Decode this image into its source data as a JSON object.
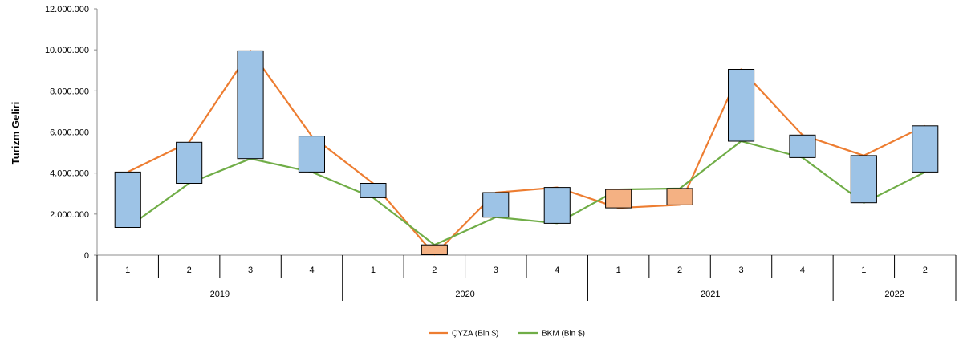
{
  "chart_data": {
    "type": "line",
    "ylabel": "Turizm Geliri",
    "ylim": [
      0,
      12000000
    ],
    "y_ticks": [
      "0",
      "2.000.000",
      "4.000.000",
      "6.000.000",
      "8.000.000",
      "10.000.000",
      "12.000.000"
    ],
    "quarters": [
      "1",
      "2",
      "3",
      "4",
      "1",
      "2",
      "3",
      "4",
      "1",
      "2",
      "3",
      "4",
      "1",
      "2"
    ],
    "years": [
      {
        "label": "2019",
        "span": 4
      },
      {
        "label": "2020",
        "span": 4
      },
      {
        "label": "2021",
        "span": 4
      },
      {
        "label": "2022",
        "span": 2
      }
    ],
    "series": [
      {
        "name": "ÇYZA (Bin $)",
        "color": "#ED7D31",
        "values": [
          4050000,
          5500000,
          9950000,
          5800000,
          3500000,
          20000,
          3050000,
          3300000,
          2300000,
          2450000,
          9050000,
          5850000,
          4850000,
          6300000
        ]
      },
      {
        "name": "BKM (Bin $)",
        "color": "#70AD47",
        "values": [
          1350000,
          3500000,
          4700000,
          4050000,
          2800000,
          500000,
          1850000,
          1550000,
          3200000,
          3250000,
          5550000,
          4750000,
          2550000,
          4050000
        ]
      }
    ],
    "up_color": "#9DC3E6",
    "down_color": "#F4B183",
    "grid": false,
    "legend_position": "bottom"
  }
}
